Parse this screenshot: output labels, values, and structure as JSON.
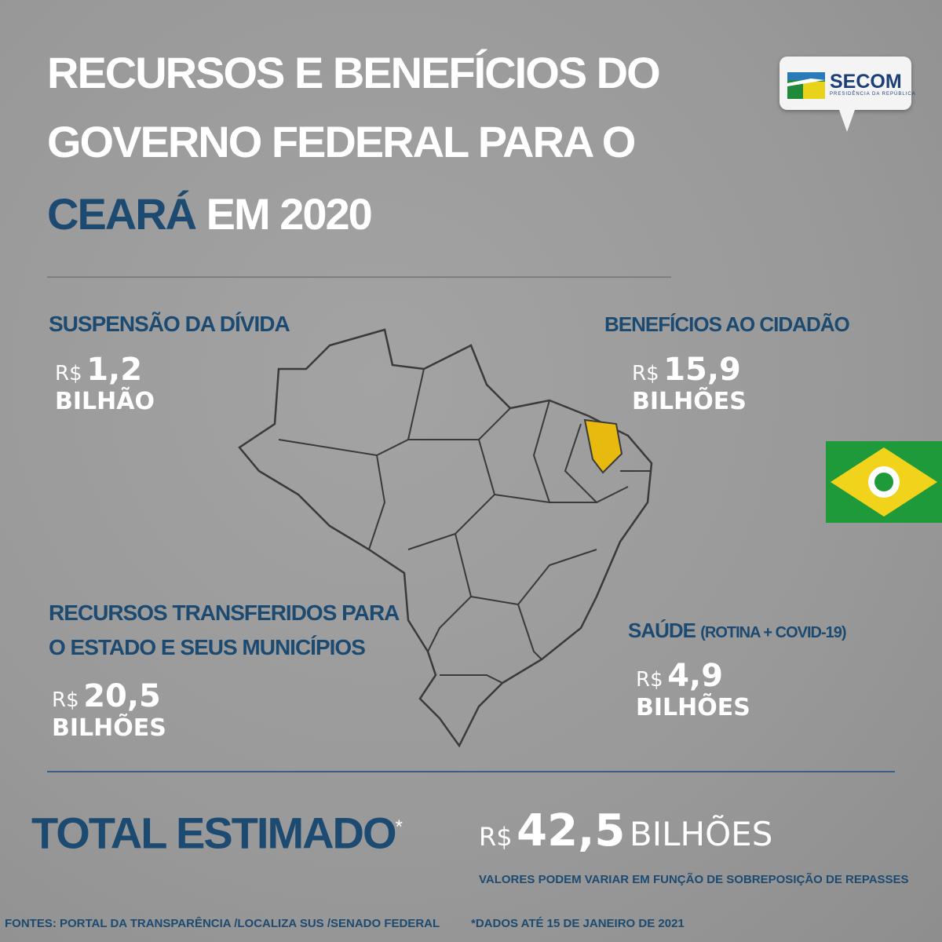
{
  "title": {
    "line1": "RECURSOS E BENEFÍCIOS DO",
    "line2": "GOVERNO FEDERAL PARA O",
    "state": "CEARÁ",
    "line3_rest": " EM 2020"
  },
  "logo": {
    "name": "SECOM",
    "subtitle": "PRESIDÊNCIA DA REPÚBLICA"
  },
  "blocks": {
    "divida": {
      "heading": "SUSPENSÃO DA DÍVIDA",
      "currency": "R$",
      "value": "1,2",
      "unit": "BILHÃO"
    },
    "beneficios": {
      "heading": "BENEFÍCIOS AO CIDADÃO",
      "currency": "R$",
      "value": "15,9",
      "unit": "BILHÕES"
    },
    "recursos": {
      "heading_line1": "RECURSOS TRANSFERIDOS PARA",
      "heading_line2": "O ESTADO E SEUS MUNICÍPIOS",
      "currency": "R$",
      "value": "20,5",
      "unit": "BILHÕES"
    },
    "saude": {
      "heading": "SAÚDE",
      "heading_note": "(ROTINA + COVID-19)",
      "currency": "R$",
      "value": "4,9",
      "unit": "BILHÕES"
    }
  },
  "total": {
    "label": "TOTAL ESTIMADO",
    "asterisk": "*",
    "currency": "R$",
    "value": "42,5",
    "unit": "BILHÕES",
    "note": "VALORES PODEM VARIAR EM FUNÇÃO DE SOBREPOSIÇÃO DE REPASSES"
  },
  "footer": {
    "sources": "FONTES: PORTAL DA TRANSPARÊNCIA /LOCALIZA SUS /SENADO FEDERAL",
    "date_note": "*DADOS ATÉ 15 DE JANEIRO DE 2021"
  },
  "colors": {
    "accent_blue": "#1c4a70",
    "highlight_state": "#e8b90e",
    "flag_green": "#1f9a3a",
    "flag_yellow": "#f2d31b",
    "background": "#9a9a9a"
  },
  "map": {
    "highlighted_state": "Ceará"
  }
}
